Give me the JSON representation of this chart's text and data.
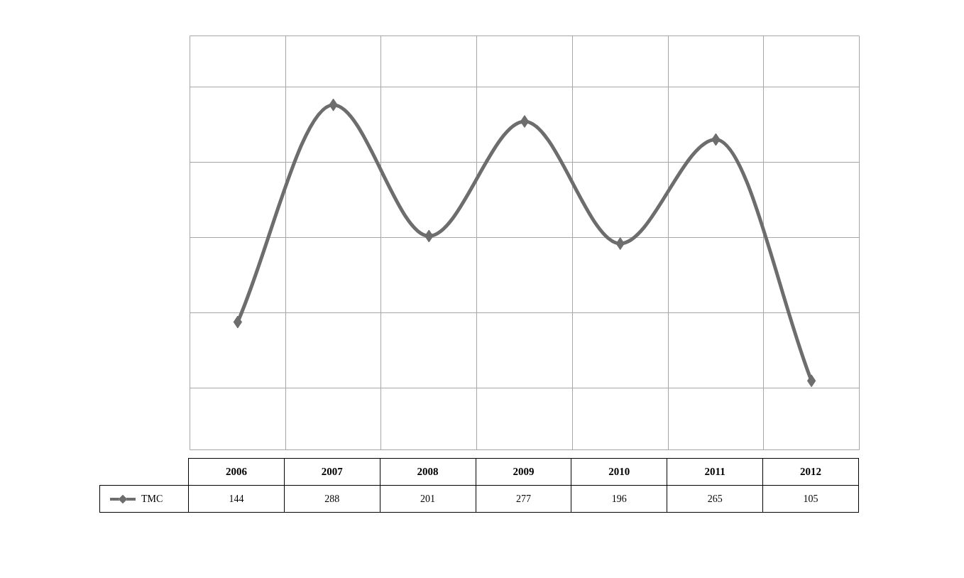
{
  "chart_data": {
    "type": "line",
    "categories": [
      "2006",
      "2007",
      "2008",
      "2009",
      "2010",
      "2011",
      "2012"
    ],
    "series": [
      {
        "name": "TMC",
        "color": "#6d6d6d",
        "values": [
          144,
          288,
          201,
          277,
          196,
          265,
          105
        ]
      }
    ],
    "grid": true,
    "legend": "bottom",
    "marker": "diamond",
    "line_style": "solid",
    "data_labels": true
  }
}
